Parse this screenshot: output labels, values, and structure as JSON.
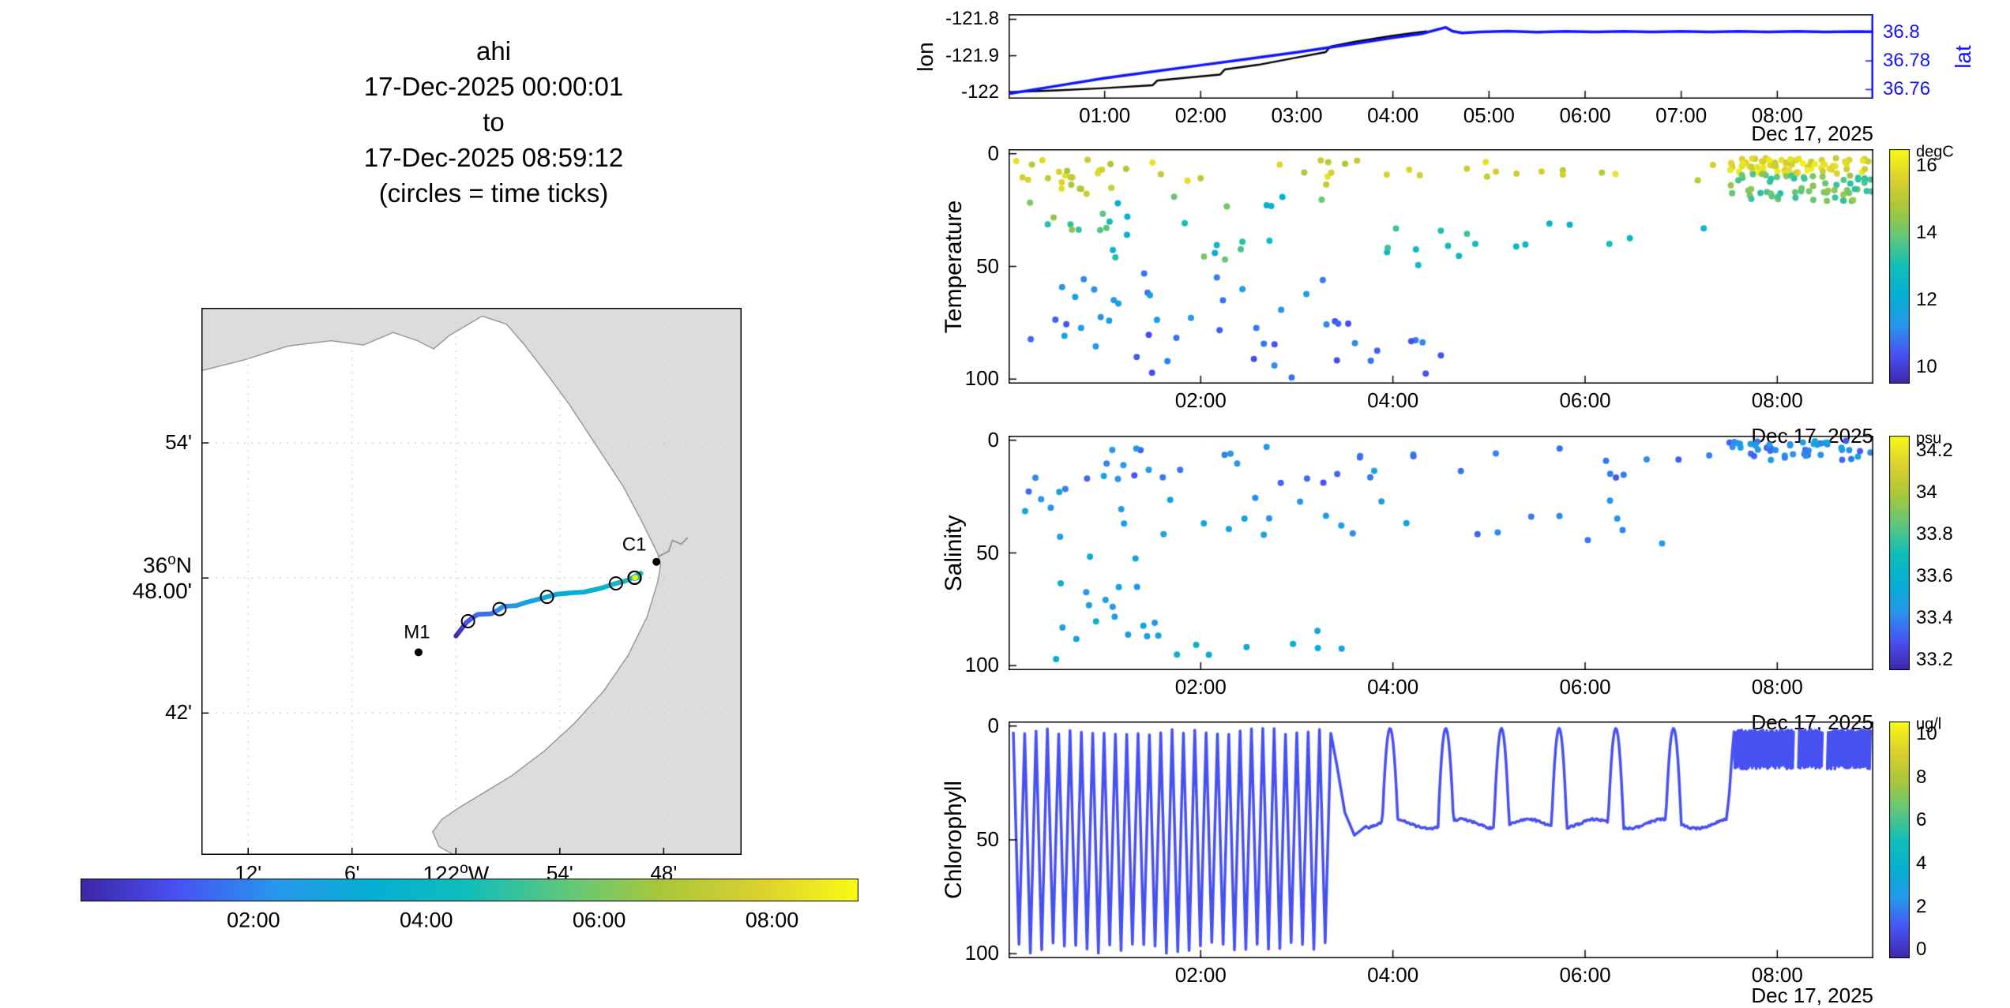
{
  "figure_title": {
    "lines": [
      "ahi",
      "17-Dec-2025 00:00:01",
      "to",
      "17-Dec-2025 08:59:12",
      "(circles = time ticks)"
    ]
  },
  "accent_blue": "#1414ff",
  "map": {
    "lon_range": [
      -122.245,
      -121.725
    ],
    "lat_range": [
      36.595,
      37.0
    ],
    "land_color": "#dcdcdc",
    "xticks": [
      {
        "v": -122.2,
        "label": "12'"
      },
      {
        "v": -122.1,
        "label": "6'"
      },
      {
        "v": -122.0,
        "label": "122^{o}W"
      },
      {
        "v": -121.9,
        "label": "54'"
      },
      {
        "v": -121.8,
        "label": "48'"
      }
    ],
    "yticks": [
      {
        "v": 36.9,
        "label": "54'"
      },
      {
        "v": 36.8,
        "label": "36^{o}N\n48.00'"
      },
      {
        "v": 36.7,
        "label": "42'"
      }
    ],
    "markers": [
      {
        "name": "M1",
        "lon": -122.036,
        "lat": 36.745
      },
      {
        "name": "C1",
        "lon": -121.807,
        "lat": 36.812
      }
    ],
    "colorbar": {
      "range": [
        0,
        9
      ],
      "ticks": [
        {
          "v": 2,
          "label": "02:00"
        },
        {
          "v": 4,
          "label": "04:00"
        },
        {
          "v": 6,
          "label": "06:00"
        },
        {
          "v": 8,
          "label": "08:00"
        }
      ]
    }
  },
  "track": {
    "tick_hours": [
      1,
      2,
      3,
      4,
      5,
      6,
      7,
      8
    ],
    "points": [
      [
        0.0,
        -122.0,
        36.757
      ],
      [
        0.3,
        -121.997,
        36.76
      ],
      [
        0.6,
        -121.993,
        36.764
      ],
      [
        0.9,
        -121.99,
        36.767
      ],
      [
        1.2,
        -121.985,
        36.77
      ],
      [
        1.55,
        -121.979,
        36.773
      ],
      [
        1.6,
        -121.966,
        36.7735
      ],
      [
        1.9,
        -121.96,
        36.776
      ],
      [
        2.2,
        -121.954,
        36.779
      ],
      [
        2.25,
        -121.942,
        36.7795
      ],
      [
        2.6,
        -121.932,
        36.782
      ],
      [
        2.9,
        -121.917,
        36.785
      ],
      [
        3.2,
        -121.903,
        36.788
      ],
      [
        3.35,
        -121.888,
        36.789
      ],
      [
        3.4,
        -121.877,
        36.7895
      ],
      [
        3.7,
        -121.86,
        36.7925
      ],
      [
        4.0,
        -121.846,
        36.796
      ],
      [
        4.2,
        -121.838,
        36.7975
      ],
      [
        4.35,
        -121.833,
        36.799
      ],
      [
        4.55,
        -121.822,
        36.8035
      ],
      [
        4.65,
        -121.824,
        36.8005
      ],
      [
        4.75,
        -121.828,
        36.7995
      ],
      [
        5.0,
        -121.828,
        36.8002
      ],
      [
        5.5,
        -121.827,
        36.8004
      ],
      [
        6.0,
        -121.828,
        36.8002
      ],
      [
        6.5,
        -121.827,
        36.8005
      ],
      [
        7.0,
        -121.828,
        36.8002
      ],
      [
        7.5,
        -121.827,
        36.8004
      ],
      [
        8.0,
        -121.828,
        36.8002
      ],
      [
        8.5,
        -121.827,
        36.8004
      ],
      [
        9.0,
        -121.828,
        36.8003
      ]
    ]
  },
  "chart_data": [
    {
      "id": "nav",
      "type": "line",
      "x_range": [
        0,
        9
      ],
      "xlabel_date": "Dec 17, 2025",
      "xticks": [
        {
          "v": 1,
          "label": "01:00"
        },
        {
          "v": 2,
          "label": "02:00"
        },
        {
          "v": 3,
          "label": "03:00"
        },
        {
          "v": 4,
          "label": "04:00"
        },
        {
          "v": 5,
          "label": "05:00"
        },
        {
          "v": 6,
          "label": "06:00"
        },
        {
          "v": 7,
          "label": "07:00"
        },
        {
          "v": 8,
          "label": "08:00"
        }
      ],
      "left_axis": {
        "label": "lon",
        "color": "#000000",
        "lim": [
          -122.018,
          -121.786
        ],
        "ticks": [
          {
            "v": -121.8,
            "label": "-121.8"
          },
          {
            "v": -121.9,
            "label": "-121.9"
          },
          {
            "v": -122,
            "label": "-122"
          }
        ]
      },
      "right_axis": {
        "label": "lat",
        "color": "#1414ff",
        "lim": [
          36.7536,
          36.8127
        ],
        "ticks": [
          {
            "v": 36.8,
            "label": "36.8"
          },
          {
            "v": 36.78,
            "label": "36.78"
          },
          {
            "v": 36.76,
            "label": "36.76"
          }
        ]
      },
      "series": [
        {
          "name": "lon",
          "color": "#000000",
          "points": [
            [
              0,
              -122.0
            ],
            [
              0.5,
              -121.995
            ],
            [
              1,
              -121.989
            ],
            [
              1.5,
              -121.981
            ],
            [
              1.55,
              -121.968
            ],
            [
              2,
              -121.957
            ],
            [
              2.2,
              -121.952
            ],
            [
              2.25,
              -121.938
            ],
            [
              2.6,
              -121.925
            ],
            [
              3,
              -121.905
            ],
            [
              3.3,
              -121.89
            ],
            [
              3.35,
              -121.875
            ],
            [
              3.6,
              -121.862
            ],
            [
              4,
              -121.845
            ],
            [
              4.2,
              -121.838
            ],
            [
              4.35,
              -121.833
            ]
          ]
        },
        {
          "name": "lat",
          "color": "#1414ff",
          "points": [
            [
              0,
              36.757
            ],
            [
              0.5,
              36.7625
            ],
            [
              1,
              36.768
            ],
            [
              1.5,
              36.7725
            ],
            [
              2,
              36.777
            ],
            [
              2.5,
              36.7815
            ],
            [
              3,
              36.786
            ],
            [
              3.5,
              36.791
            ],
            [
              4,
              36.7962
            ],
            [
              4.3,
              36.799
            ],
            [
              4.55,
              36.8035
            ],
            [
              4.62,
              36.8008
            ],
            [
              4.72,
              36.7996
            ],
            [
              4.9,
              36.8003
            ],
            [
              5.2,
              36.8008
            ],
            [
              5.5,
              36.8002
            ],
            [
              5.8,
              36.8007
            ],
            [
              6.1,
              36.8003
            ],
            [
              6.4,
              36.8007
            ],
            [
              6.7,
              36.8003
            ],
            [
              7.0,
              36.8007
            ],
            [
              7.3,
              36.8003
            ],
            [
              7.6,
              36.8007
            ],
            [
              7.9,
              36.8003
            ],
            [
              8.2,
              36.8007
            ],
            [
              8.5,
              36.8003
            ],
            [
              8.8,
              36.8006
            ],
            [
              9.0,
              36.8004
            ]
          ]
        }
      ]
    },
    {
      "id": "temperature",
      "type": "scatter",
      "ylabel": "Temperature",
      "xlabel_date": "Dec 17, 2025",
      "x_range": [
        0,
        9
      ],
      "y_range": [
        -2,
        102
      ],
      "yticks": [
        0,
        50,
        100
      ],
      "xticks": [
        {
          "v": 2,
          "label": "02:00"
        },
        {
          "v": 4,
          "label": "04:00"
        },
        {
          "v": 6,
          "label": "06:00"
        },
        {
          "v": 8,
          "label": "08:00"
        }
      ],
      "colorbar": {
        "label": "degC",
        "range": [
          9.5,
          16.5
        ],
        "ticks": [
          16,
          14,
          12,
          10
        ]
      },
      "clusters": [
        {
          "t": [
            0.05,
            1.25
          ],
          "d": [
            2,
            18
          ],
          "v": [
            14.6,
            16.2
          ],
          "n": 24
        },
        {
          "t": [
            0.1,
            1.1
          ],
          "d": [
            20,
            42
          ],
          "v": [
            13.2,
            14.6
          ],
          "n": 9
        },
        {
          "t": [
            1.3,
            4.4
          ],
          "d": [
            3,
            14
          ],
          "v": [
            14.6,
            16.0
          ],
          "n": 16
        },
        {
          "t": [
            4.6,
            7.4
          ],
          "d": [
            2,
            12
          ],
          "v": [
            15.0,
            16.2
          ],
          "n": 12
        },
        {
          "t": [
            0.9,
            3.3
          ],
          "d": [
            16,
            48
          ],
          "v": [
            12.0,
            14.2
          ],
          "n": 20
        },
        {
          "t": [
            0.15,
            1.15
          ],
          "d": [
            55,
            88
          ],
          "v": [
            11.0,
            12.0
          ],
          "n": 10
        },
        {
          "t": [
            0.2,
            4.7
          ],
          "d": [
            72,
            100
          ],
          "v": [
            10.2,
            11.2
          ],
          "n": 28
        },
        {
          "t": [
            1.4,
            3.6
          ],
          "d": [
            52,
            78
          ],
          "v": [
            10.8,
            11.8
          ],
          "n": 12
        },
        {
          "t": [
            3.8,
            4.9
          ],
          "d": [
            33,
            50
          ],
          "v": [
            12.4,
            13.6
          ],
          "n": 10
        },
        {
          "t": [
            5.0,
            7.4
          ],
          "d": [
            30,
            46
          ],
          "v": [
            12.3,
            13.2
          ],
          "n": 7
        },
        {
          "t": [
            7.5,
            8.98
          ],
          "d": [
            2,
            9
          ],
          "v": [
            15.2,
            16.3
          ],
          "n": 75
        },
        {
          "t": [
            7.5,
            8.98
          ],
          "d": [
            9,
            21
          ],
          "v": [
            13.2,
            14.6
          ],
          "n": 65
        }
      ]
    },
    {
      "id": "salinity",
      "type": "scatter",
      "ylabel": "Salinity",
      "xlabel_date": "Dec 17, 2025",
      "x_range": [
        0,
        9
      ],
      "y_range": [
        -2,
        102
      ],
      "yticks": [
        0,
        50,
        100
      ],
      "xticks": [
        {
          "v": 2,
          "label": "02:00"
        },
        {
          "v": 4,
          "label": "04:00"
        },
        {
          "v": 6,
          "label": "06:00"
        },
        {
          "v": 8,
          "label": "08:00"
        }
      ],
      "colorbar": {
        "label": "psu",
        "range": [
          33.15,
          34.27
        ],
        "ticks": [
          34.2,
          34,
          33.8,
          33.6,
          33.4,
          33.2
        ]
      },
      "clusters": [
        {
          "t": [
            0.05,
            1.3
          ],
          "d": [
            2,
            46
          ],
          "v": [
            33.32,
            33.55
          ],
          "n": 16
        },
        {
          "t": [
            1.3,
            4.3
          ],
          "d": [
            2,
            22
          ],
          "v": [
            33.28,
            33.5
          ],
          "n": 20
        },
        {
          "t": [
            4.5,
            7.4
          ],
          "d": [
            2,
            18
          ],
          "v": [
            33.3,
            33.45
          ],
          "n": 10
        },
        {
          "t": [
            1.5,
            4.2
          ],
          "d": [
            22,
            46
          ],
          "v": [
            33.35,
            33.55
          ],
          "n": 14
        },
        {
          "t": [
            0.1,
            1.4
          ],
          "d": [
            48,
            78
          ],
          "v": [
            33.4,
            33.58
          ],
          "n": 9
        },
        {
          "t": [
            0.25,
            3.0
          ],
          "d": [
            78,
            100
          ],
          "v": [
            33.45,
            33.62
          ],
          "n": 15
        },
        {
          "t": [
            3.0,
            3.5
          ],
          "d": [
            80,
            96
          ],
          "v": [
            33.5,
            33.6
          ],
          "n": 3
        },
        {
          "t": [
            4.0,
            7.4
          ],
          "d": [
            26,
            46
          ],
          "v": [
            33.3,
            33.48
          ],
          "n": 9
        },
        {
          "t": [
            7.5,
            8.98
          ],
          "d": [
            0,
            9
          ],
          "v": [
            33.3,
            33.52
          ],
          "n": 48
        }
      ]
    },
    {
      "id": "chlorophyll",
      "type": "profile",
      "ylabel": "Chlorophyll",
      "xlabel_date": "Dec 17, 2025",
      "x_range": [
        0,
        9
      ],
      "y_range": [
        -2,
        102
      ],
      "yticks": [
        0,
        50,
        100
      ],
      "xticks": [
        {
          "v": 2,
          "label": "02:00"
        },
        {
          "v": 4,
          "label": "04:00"
        },
        {
          "v": 6,
          "label": "06:00"
        },
        {
          "v": 8,
          "label": "08:00"
        }
      ],
      "colorbar": {
        "label": "ug/l",
        "range": [
          -0.4,
          10.6
        ],
        "ticks": [
          10,
          8,
          6,
          4,
          2,
          0
        ]
      },
      "profile": {
        "value": 0.9,
        "yoyo": {
          "t0": 0.05,
          "t1": 3.38,
          "period": 0.118,
          "dmin": 1,
          "dmax": 100
        },
        "transition": [
          [
            3.42,
            18
          ],
          [
            3.5,
            38
          ],
          [
            3.6,
            48
          ],
          [
            3.72,
            44
          ]
        ],
        "baseline": {
          "t0": 3.75,
          "t1": 7.48,
          "depth": 43
        },
        "spikes": [
          3.97,
          4.55,
          5.13,
          5.73,
          6.32,
          6.92
        ],
        "spike_halfwidth": 0.08,
        "spike_top": 1,
        "rise": [
          [
            7.5,
            30
          ],
          [
            7.53,
            12
          ]
        ],
        "band": {
          "t0": 7.55,
          "t1": 8.97,
          "period": 0.02,
          "dmin": 1.5,
          "dmax": 19,
          "gaps": [
            [
              8.17,
              8.21
            ],
            [
              8.47,
              8.51
            ]
          ]
        }
      }
    }
  ]
}
